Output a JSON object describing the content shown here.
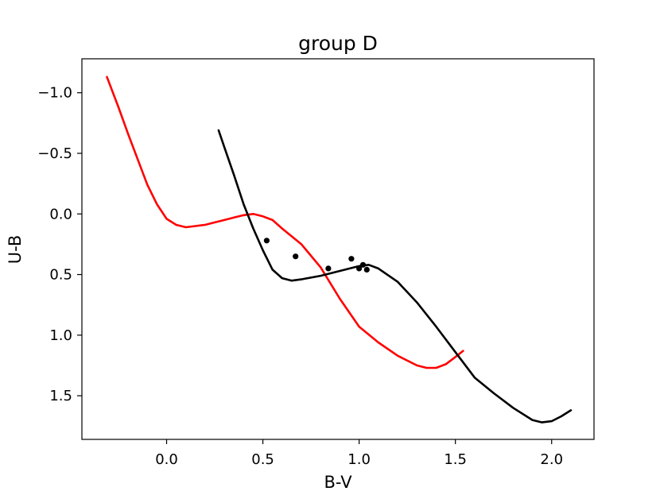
{
  "chart_data": {
    "type": "line",
    "title": "group D",
    "xlabel": "B-V",
    "ylabel": "U-B",
    "xlim": [
      -0.44,
      2.22
    ],
    "ylim": [
      1.86,
      -1.28
    ],
    "y_inverted": true,
    "grid": false,
    "xticks": [
      {
        "value": 0.0,
        "label": "0.0"
      },
      {
        "value": 0.5,
        "label": "0.5"
      },
      {
        "value": 1.0,
        "label": "1.0"
      },
      {
        "value": 1.5,
        "label": "1.5"
      },
      {
        "value": 2.0,
        "label": "2.0"
      }
    ],
    "yticks": [
      {
        "value": -1.0,
        "label": "−1.0"
      },
      {
        "value": -0.5,
        "label": "−0.5"
      },
      {
        "value": 0.0,
        "label": "0.0"
      },
      {
        "value": 0.5,
        "label": "0.5"
      },
      {
        "value": 1.0,
        "label": "1.0"
      },
      {
        "value": 1.5,
        "label": "1.5"
      }
    ],
    "series": [
      {
        "color": "#ff0000",
        "kind": "line",
        "x": [
          -0.31,
          -0.25,
          -0.2,
          -0.15,
          -0.1,
          -0.05,
          0.0,
          0.05,
          0.1,
          0.15,
          0.2,
          0.25,
          0.3,
          0.35,
          0.4,
          0.45,
          0.5,
          0.55,
          0.6,
          0.7,
          0.8,
          0.9,
          1.0,
          1.1,
          1.2,
          1.3,
          1.35,
          1.4,
          1.45,
          1.5,
          1.54
        ],
        "y": [
          -1.13,
          -0.88,
          -0.66,
          -0.45,
          -0.24,
          -0.08,
          0.04,
          0.09,
          0.11,
          0.1,
          0.09,
          0.07,
          0.05,
          0.03,
          0.01,
          0.0,
          0.02,
          0.05,
          0.12,
          0.25,
          0.44,
          0.7,
          0.93,
          1.06,
          1.17,
          1.25,
          1.27,
          1.27,
          1.24,
          1.18,
          1.13
        ]
      },
      {
        "color": "#000000",
        "kind": "line",
        "x": [
          0.27,
          0.3,
          0.35,
          0.4,
          0.45,
          0.5,
          0.55,
          0.6,
          0.65,
          0.7,
          0.8,
          0.9,
          1.0,
          1.05,
          1.1,
          1.2,
          1.3,
          1.4,
          1.5,
          1.6,
          1.7,
          1.8,
          1.9,
          1.95,
          2.0,
          2.05,
          2.1
        ],
        "y": [
          -0.69,
          -0.55,
          -0.32,
          -0.08,
          0.12,
          0.3,
          0.46,
          0.53,
          0.55,
          0.54,
          0.51,
          0.47,
          0.43,
          0.42,
          0.45,
          0.56,
          0.73,
          0.93,
          1.14,
          1.35,
          1.48,
          1.6,
          1.7,
          1.72,
          1.71,
          1.67,
          1.62
        ]
      },
      {
        "color": "#000000",
        "kind": "scatter",
        "x": [
          0.52,
          0.67,
          0.84,
          0.96,
          1.0,
          1.02,
          1.04
        ],
        "y": [
          0.22,
          0.35,
          0.45,
          0.37,
          0.45,
          0.42,
          0.46
        ]
      }
    ]
  }
}
